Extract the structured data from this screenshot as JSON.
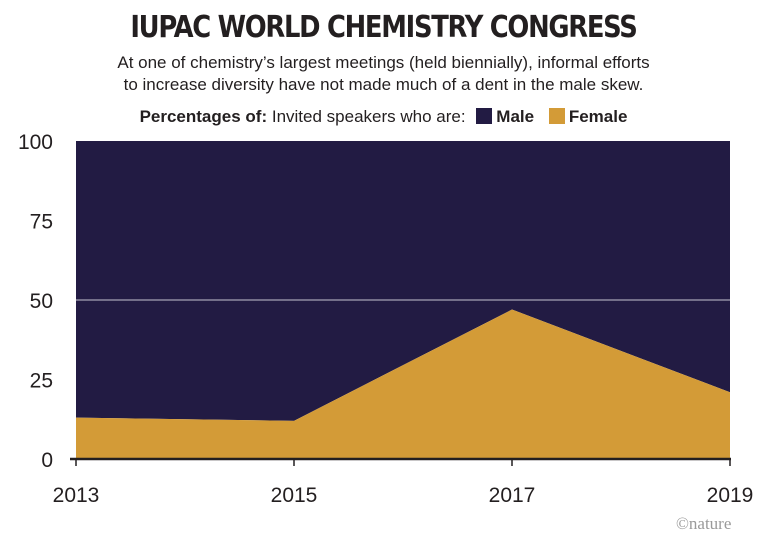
{
  "chart_data": {
    "type": "area",
    "title": "IUPAC WORLD CHEMISTRY CONGRESS",
    "subtitle_lines": [
      "At one of chemistry’s largest meetings (held biennially), informal efforts",
      "to increase diversity have not made much of a dent in the male skew."
    ],
    "legend_prefix": "Percentages of:",
    "legend_text": "Invited speakers who are:",
    "x": [
      "2013",
      "2015",
      "2017",
      "2019"
    ],
    "series": [
      {
        "name": "Male",
        "values": [
          87,
          88,
          53,
          79
        ],
        "color": "#221b43"
      },
      {
        "name": "Female",
        "values": [
          13,
          12,
          47,
          21
        ],
        "color": "#d39b37"
      }
    ],
    "ylim": [
      0,
      100
    ],
    "yticks": [
      "0",
      "25",
      "50",
      "75",
      "100"
    ],
    "grid_y": [
      50
    ],
    "stacked": true,
    "credit": "©nature"
  }
}
